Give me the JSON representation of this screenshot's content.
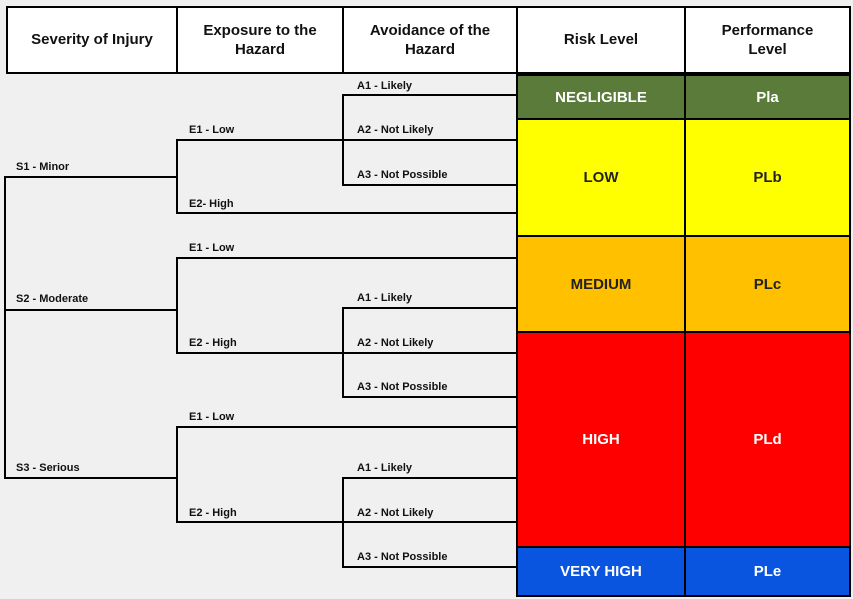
{
  "headers": {
    "severity": "Severity of Injury",
    "exposure": "Exposure to the Hazard",
    "avoidance": "Avoidance of the Hazard",
    "risk": "Risk Level",
    "performance": "Performance Level"
  },
  "severity_labels": [
    "S1 - Minor",
    "S2 - Moderate",
    "S3 - Serious"
  ],
  "exposure_labels": [
    "E1 - Low",
    "E2- High",
    "E1 - Low",
    "E2 - High",
    "E1 - Low",
    "E2 - High"
  ],
  "avoidance_labels": [
    "A1 - Likely",
    "A2 - Not Likely",
    "A3 - Not Possible",
    "A1 - Likely",
    "A2 - Not Likely",
    "A3 - Not Possible",
    "A1 - Likely",
    "A2 - Not Likely",
    "A3 - Not Possible"
  ],
  "levels": [
    {
      "risk": "NEGLIGIBLE",
      "pl": "Pla",
      "color": "#5a7b3a",
      "text_color": "#ffffff"
    },
    {
      "risk": "LOW",
      "pl": "PLb",
      "color": "#ffff00",
      "text_color": "#222222"
    },
    {
      "risk": "MEDIUM",
      "pl": "PLc",
      "color": "#ffc000",
      "text_color": "#222222"
    },
    {
      "risk": "HIGH",
      "pl": "PLd",
      "color": "#ff0000",
      "text_color": "#ffffff"
    },
    {
      "risk": "VERY HIGH",
      "pl": "PLe",
      "color": "#0a55e0",
      "text_color": "#ffffff"
    }
  ]
}
